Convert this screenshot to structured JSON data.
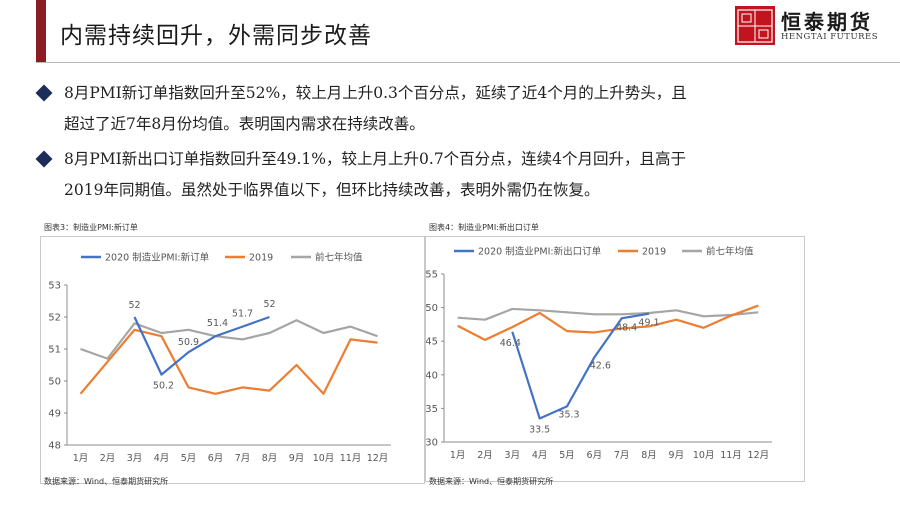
{
  "header": {
    "title": "内需持续回升，外需同步改善",
    "logo_seal": "证期",
    "logo_name": "恒泰期货",
    "logo_english": "HENGTAI FUTURES"
  },
  "bullets": [
    {
      "line1": "8月PMI新订单指数回升至52%，较上月上升0.3个百分点，延续了近4个月的上升势头，且",
      "line2": "超过了近7年8月份均值。表明国内需求在持续改善。"
    },
    {
      "line1": "8月PMI新出口订单指数回升至49.1%，较上月上升0.7个百分点，连续4个月回升，且高于",
      "line2": "2019年同期值。虽然处于临界值以下，但环比持续改善，表明外需仍在恢复。"
    }
  ],
  "colors": {
    "s2020": "#4472c4",
    "s2019": "#ed7d31",
    "avg": "#a5a5a5",
    "accent": "#8a1c22",
    "bullet": "#1d2d5a"
  },
  "chart_data": [
    {
      "type": "line",
      "caption": "图表3：制造业PMI:新订单",
      "source": "数据来源：Wind、恒泰期货研究所",
      "title": "",
      "xlabel": "",
      "ylabel": "",
      "categories": [
        "1月",
        "2月",
        "3月",
        "4月",
        "5月",
        "6月",
        "7月",
        "8月",
        "9月",
        "10月",
        "11月",
        "12月"
      ],
      "ylim": [
        48,
        53
      ],
      "yticks": [
        48,
        49,
        50,
        51,
        52,
        53
      ],
      "grid": false,
      "legend": "top",
      "series": [
        {
          "name": "2020 制造业PMI:新订单",
          "color": "#4472c4",
          "values": [
            null,
            null,
            52.0,
            50.2,
            50.9,
            51.4,
            51.7,
            52.0,
            null,
            null,
            null,
            null
          ],
          "labels": [
            null,
            null,
            "52",
            "50.2",
            "50.9",
            "51.4",
            "51.7",
            "52",
            null,
            null,
            null,
            null
          ]
        },
        {
          "name": "2019",
          "color": "#ed7d31",
          "values": [
            49.6,
            50.6,
            51.6,
            51.4,
            49.8,
            49.6,
            49.8,
            49.7,
            50.5,
            49.6,
            51.3,
            51.2
          ],
          "labels": []
        },
        {
          "name": "前七年均值",
          "color": "#a5a5a5",
          "values": [
            51.0,
            50.7,
            51.8,
            51.5,
            51.6,
            51.4,
            51.3,
            51.5,
            51.9,
            51.5,
            51.7,
            51.4
          ],
          "labels": []
        }
      ]
    },
    {
      "type": "line",
      "caption": "图表4：制造业PMI:新出口订单",
      "source": "数据来源：Wind、恒泰期货研究所",
      "title": "",
      "xlabel": "",
      "ylabel": "",
      "categories": [
        "1月",
        "2月",
        "3月",
        "4月",
        "5月",
        "6月",
        "7月",
        "8月",
        "9月",
        "10月",
        "11月",
        "12月"
      ],
      "ylim": [
        30,
        55
      ],
      "yticks": [
        30,
        35,
        40,
        45,
        50,
        55
      ],
      "grid": false,
      "legend": "top",
      "series": [
        {
          "name": "2020 制造业PMI:新出口订单",
          "color": "#4472c4",
          "values": [
            null,
            null,
            46.4,
            33.5,
            35.3,
            42.6,
            48.4,
            49.1,
            null,
            null,
            null,
            null
          ],
          "labels": [
            null,
            null,
            "46.4",
            "33.5",
            "35.3",
            "42.6",
            "48.4",
            "49.1",
            null,
            null,
            null,
            null
          ]
        },
        {
          "name": "2019",
          "color": "#ed7d31",
          "values": [
            47.3,
            45.2,
            47.1,
            49.2,
            46.5,
            46.3,
            46.9,
            47.2,
            48.2,
            47.0,
            48.8,
            50.3
          ],
          "labels": []
        },
        {
          "name": "前七年均值",
          "color": "#a5a5a5",
          "values": [
            48.5,
            48.2,
            49.8,
            49.6,
            49.3,
            49.0,
            49.0,
            49.2,
            49.6,
            48.7,
            48.9,
            49.3
          ],
          "labels": []
        }
      ]
    }
  ]
}
